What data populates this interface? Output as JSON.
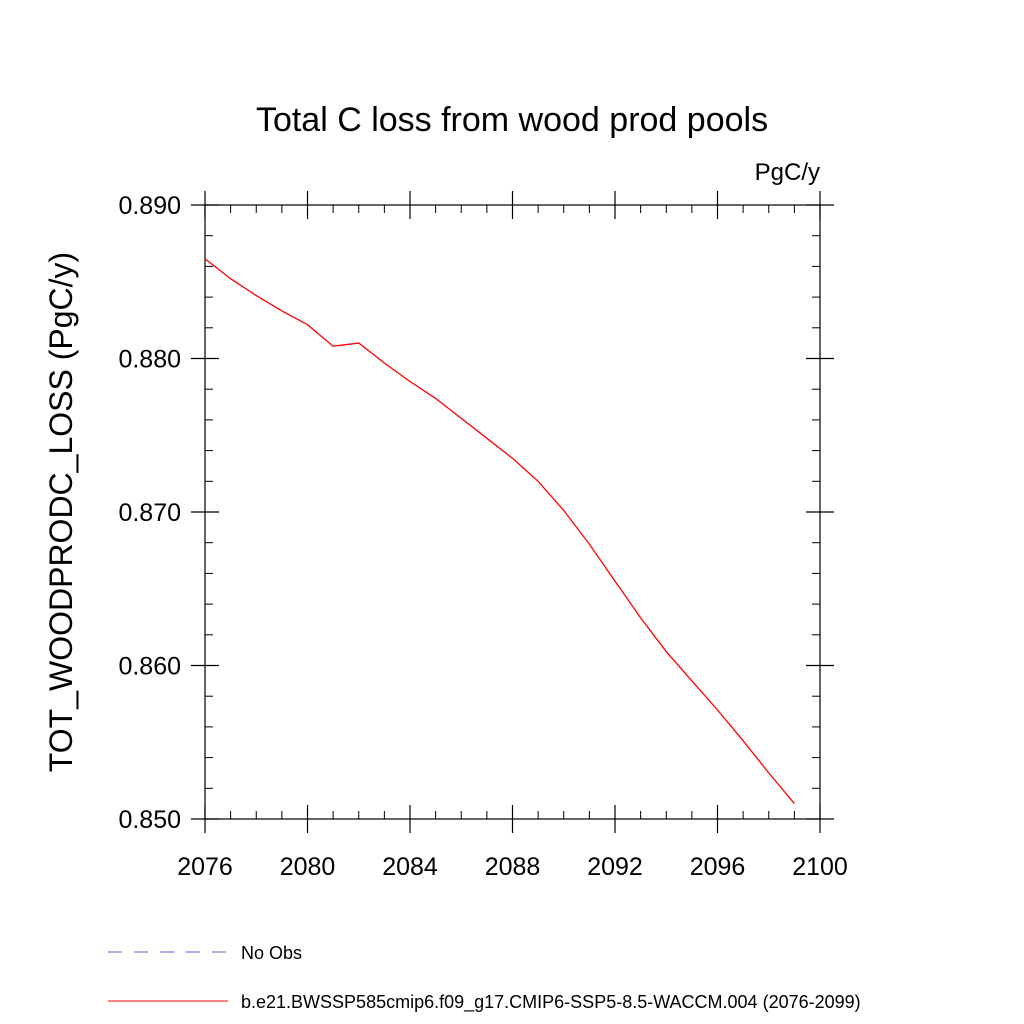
{
  "chart_data": {
    "type": "line",
    "title": "Total C loss from wood prod pools",
    "units_label": "PgC/y",
    "ylabel": "TOT_WOODPRODC_LOSS  (PgC/y)",
    "xlabel": "",
    "xlim": [
      2076,
      2100
    ],
    "ylim": [
      0.85,
      0.89
    ],
    "x_ticks": [
      2076,
      2080,
      2084,
      2088,
      2092,
      2096,
      2100
    ],
    "x_tick_labels": [
      "2076",
      "2080",
      "2084",
      "2088",
      "2092",
      "2096",
      "2100"
    ],
    "y_ticks": [
      0.85,
      0.86,
      0.87,
      0.88,
      0.89
    ],
    "y_tick_labels": [
      "0.850",
      "0.860",
      "0.870",
      "0.880",
      "0.890"
    ],
    "x_minor_step": 1,
    "y_minor_step": 0.002,
    "grid": false,
    "legend_placement": "bottom-left",
    "series": [
      {
        "name": "b.e21.BWSSP585cmip6.f09_g17.CMIP6-SSP5-8.5-WACCM.004 (2076-2099)",
        "color": "#ff0000",
        "dash": "solid",
        "x": [
          2076,
          2077,
          2078,
          2079,
          2080,
          2081,
          2082,
          2083,
          2084,
          2085,
          2086,
          2087,
          2088,
          2089,
          2090,
          2091,
          2092,
          2093,
          2094,
          2095,
          2096,
          2097,
          2098,
          2099
        ],
        "y": [
          0.8865,
          0.8852,
          0.8841,
          0.8831,
          0.8822,
          0.8808,
          0.881,
          0.8797,
          0.8785,
          0.8774,
          0.8761,
          0.8748,
          0.8735,
          0.872,
          0.8701,
          0.8679,
          0.8655,
          0.8631,
          0.8609,
          0.859,
          0.8571,
          0.8551,
          0.853,
          0.851
        ]
      }
    ],
    "legend": [
      {
        "label": "No Obs",
        "color": "#6a5acd",
        "dash": "dashed"
      },
      {
        "label": "b.e21.BWSSP585cmip6.f09_g17.CMIP6-SSP5-8.5-WACCM.004 (2076-2099)",
        "color": "#ff0000",
        "dash": "solid"
      }
    ]
  }
}
